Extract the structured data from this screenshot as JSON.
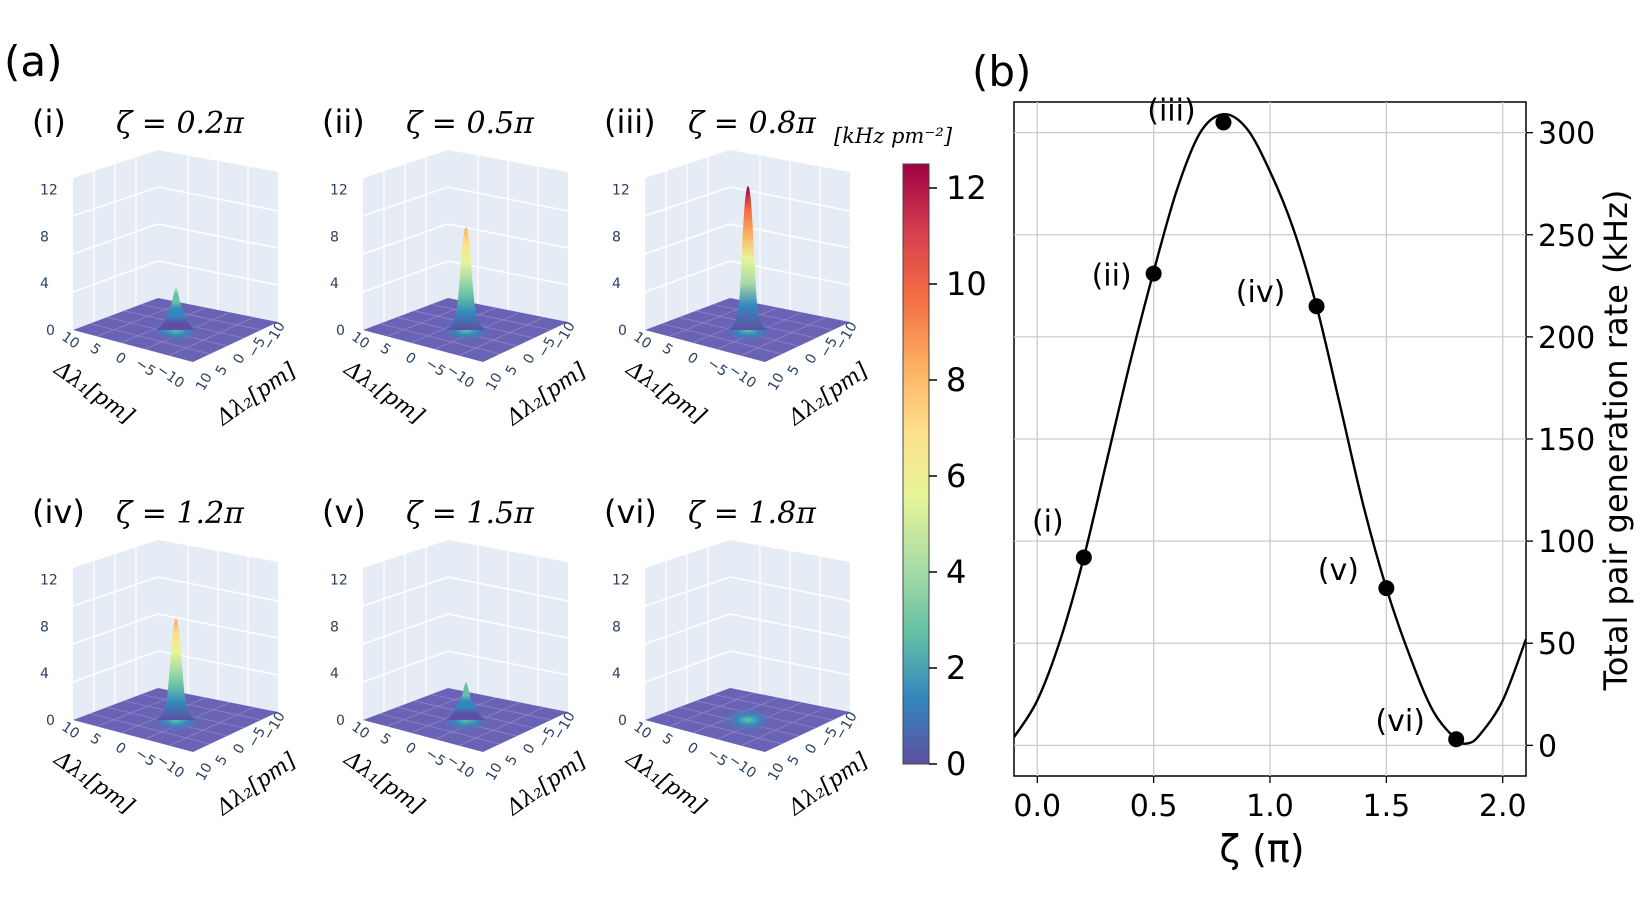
{
  "panel_a_label": "(a)",
  "panel_b_label": "(b)",
  "colorbar": {
    "title": "[kHz pm⁻²]",
    "ticks": [
      "0",
      "2",
      "4",
      "6",
      "8",
      "10",
      "12"
    ],
    "stops": [
      "#5e4fa2",
      "#3288bd",
      "#66c2a5",
      "#abdda4",
      "#e6f598",
      "#fee08b",
      "#fdae61",
      "#f46d43",
      "#d53e4f",
      "#9e0142"
    ]
  },
  "surfaces": [
    {
      "tag": "(i)",
      "label": "ζ = 0.2π",
      "peak": 3.6
    },
    {
      "tag": "(ii)",
      "label": "ζ = 0.5π",
      "peak": 8.8
    },
    {
      "tag": "(iii)",
      "label": "ζ = 0.8π",
      "peak": 12.3
    },
    {
      "tag": "(iv)",
      "label": "ζ = 1.2π",
      "peak": 8.7
    },
    {
      "tag": "(v)",
      "label": "ζ = 1.5π",
      "peak": 3.2
    },
    {
      "tag": "(vi)",
      "label": "ζ = 1.8π",
      "peak": 0.1
    }
  ],
  "surface_axes": {
    "z_ticks": [
      "0",
      "4",
      "8",
      "12"
    ],
    "x_ticks": [
      "10",
      "5",
      "0",
      "−5",
      "−10"
    ],
    "y_ticks": [
      "10",
      "5",
      "0",
      "−5",
      "−10"
    ],
    "x_label": "Δλ₁[pm]",
    "y_label": "Δλ₂[pm]"
  },
  "chart_data": {
    "type": "line",
    "title": "",
    "xlabel": "ζ (π)",
    "ylabel": "Total pair generation rate (kHz)",
    "xlim": [
      -0.1,
      2.1
    ],
    "ylim": [
      -15,
      315
    ],
    "xticks": [
      "0.0",
      "0.5",
      "1.0",
      "1.5",
      "2.0"
    ],
    "xtick_values": [
      0.0,
      0.5,
      1.0,
      1.5,
      2.0
    ],
    "yticks": [
      "0",
      "50",
      "100",
      "150",
      "200",
      "250",
      "300"
    ],
    "ytick_values": [
      0,
      50,
      100,
      150,
      200,
      250,
      300
    ],
    "grid": true,
    "series": [
      {
        "name": "curve",
        "x": [
          -0.1,
          0.0,
          0.1,
          0.2,
          0.3,
          0.4,
          0.5,
          0.6,
          0.7,
          0.8,
          0.9,
          1.0,
          1.1,
          1.2,
          1.3,
          1.4,
          1.5,
          1.6,
          1.7,
          1.8,
          1.85,
          1.9,
          2.0,
          2.1
        ],
        "y": [
          4,
          22,
          52,
          92,
          140,
          188,
          232,
          272,
          300,
          309,
          302,
          281,
          253,
          215,
          167,
          118,
          77,
          44,
          17,
          3,
          1,
          5,
          22,
          52
        ]
      },
      {
        "name": "points",
        "labels": [
          "(i)",
          "(ii)",
          "(iii)",
          "(iv)",
          "(v)",
          "(vi)"
        ],
        "x": [
          0.2,
          0.5,
          0.8,
          1.2,
          1.5,
          1.8
        ],
        "y": [
          92,
          231,
          305,
          215,
          77,
          3
        ]
      }
    ]
  }
}
